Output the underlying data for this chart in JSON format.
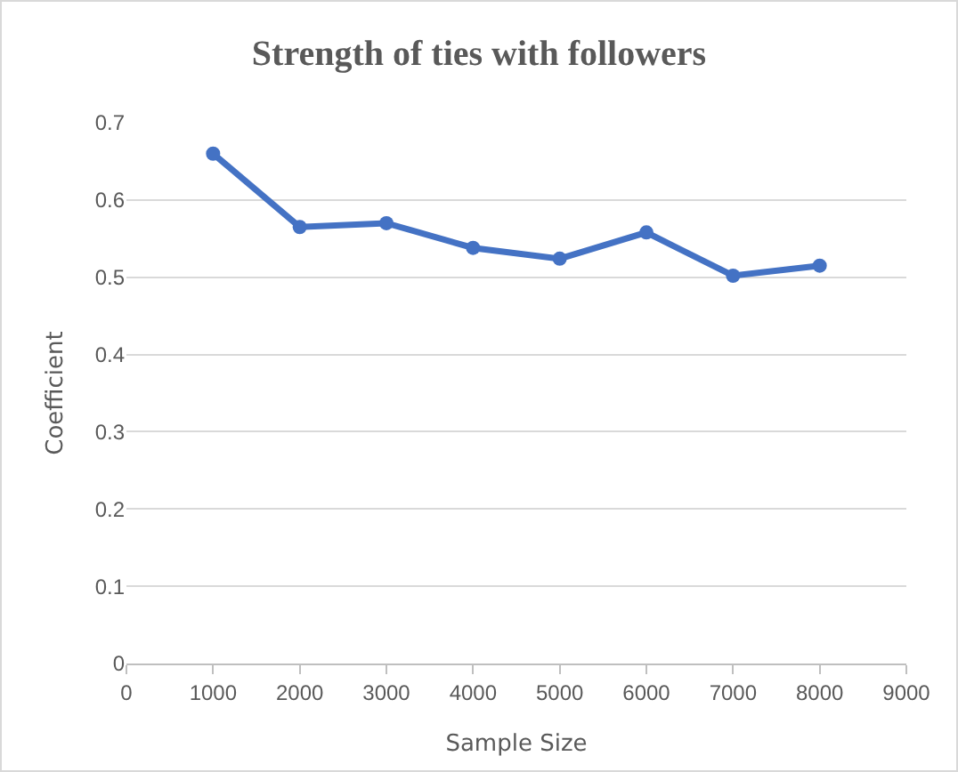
{
  "chart_data": {
    "type": "line",
    "title": "Strength of ties with followers",
    "xlabel": "Sample Size",
    "ylabel": "Coefficient",
    "x": [
      1000,
      2000,
      3000,
      4000,
      5000,
      6000,
      7000,
      8000
    ],
    "series": [
      {
        "color": "#4472c4",
        "values": [
          0.66,
          0.565,
          0.57,
          0.538,
          0.524,
          0.558,
          0.502,
          0.515
        ]
      }
    ],
    "xlim": [
      0,
      9000
    ],
    "xticks": [
      0,
      1000,
      2000,
      3000,
      4000,
      5000,
      6000,
      7000,
      8000,
      9000
    ],
    "ylim": [
      0,
      0.7
    ],
    "yticks": [
      0,
      0.1,
      0.2,
      0.3,
      0.4,
      0.5,
      0.6,
      0.7
    ],
    "grid": "y",
    "marker": "circle",
    "line_style": "solid"
  }
}
